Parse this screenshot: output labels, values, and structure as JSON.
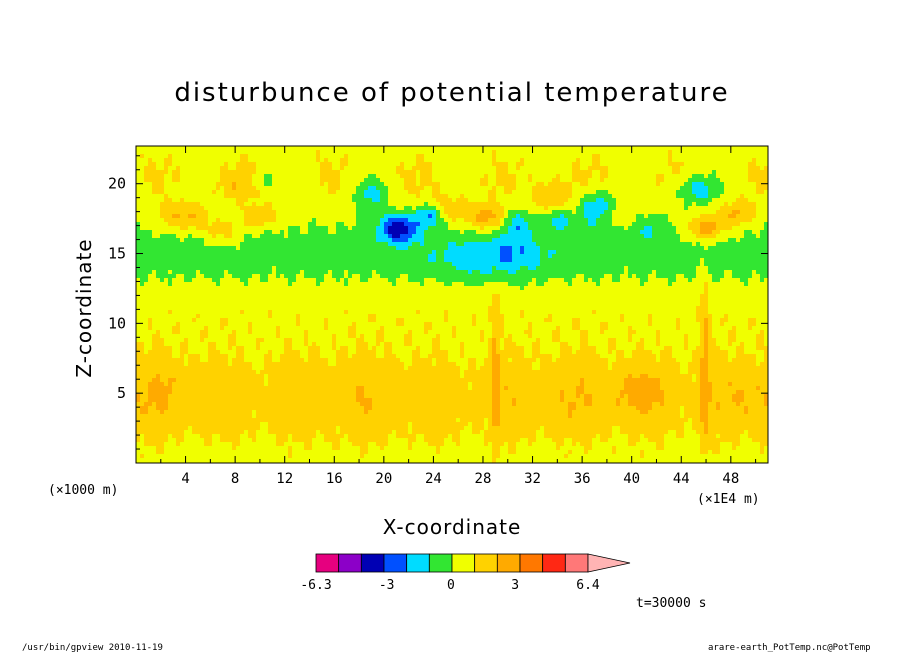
{
  "chart_data": {
    "type": "heatmap",
    "title": "disturbunce of potential temperature",
    "xlabel": "X-coordinate",
    "ylabel": "Z-coordinate",
    "x_unit_left": "(×1000 m)",
    "x_unit_right": "(×1E4 m)",
    "x_ticks": [
      "4",
      "8",
      "12",
      "16",
      "20",
      "24",
      "28",
      "32",
      "36",
      "40",
      "44",
      "48"
    ],
    "x_tick_values": [
      4,
      8,
      12,
      16,
      20,
      24,
      28,
      32,
      36,
      40,
      44,
      48
    ],
    "y_ticks": [
      "5",
      "10",
      "15",
      "20"
    ],
    "y_tick_values": [
      5,
      10,
      15,
      20
    ],
    "xlim": [
      0,
      51
    ],
    "ylim": [
      0,
      22.7
    ],
    "colorbar": {
      "levels": [
        -6.3,
        -5.4,
        -4.2,
        -3,
        -1.8,
        -0.6,
        0.6,
        1.8,
        3,
        4.2,
        5.4,
        6.4
      ],
      "tick_labels": [
        "-6.3",
        "-3",
        "0",
        "3",
        "6.4"
      ],
      "tick_values": [
        -6.3,
        -3,
        0,
        3,
        6.4
      ],
      "colors": [
        "#e6007f",
        "#8c00c8",
        "#0000b4",
        "#0050ff",
        "#00dcff",
        "#32e632",
        "#f0ff00",
        "#ffd200",
        "#ffaa00",
        "#ff7800",
        "#ff2814",
        "#ff7878",
        "#ffb4b4"
      ]
    },
    "time_label": "t=30000 s"
  },
  "footer": {
    "left": "/usr/bin/gpview  2010-11-19",
    "right": "arare-earth_PotTemp.nc@PotTemp"
  }
}
